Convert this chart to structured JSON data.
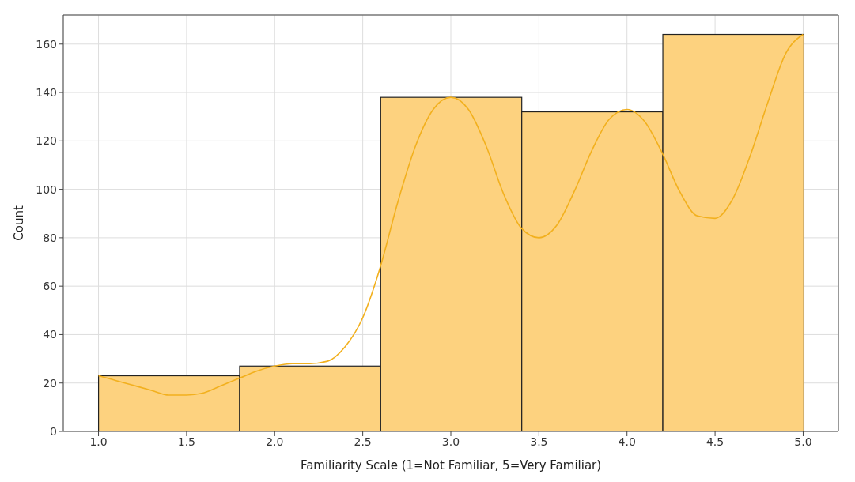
{
  "chart_data": {
    "type": "histogram",
    "xlabel": "Familiarity Scale (1=Not Familiar, 5=Very Familiar)",
    "ylabel": "Count",
    "bins": [
      1.0,
      1.8,
      2.6,
      3.4,
      4.2,
      5.0
    ],
    "values": [
      23,
      27,
      138,
      132,
      164
    ],
    "color": "#fdd27f",
    "series": [
      {
        "type": "line",
        "color": "#f2b01e",
        "x": [
          1.0,
          1.1,
          1.2,
          1.3,
          1.4,
          1.5,
          1.6,
          1.7,
          1.8,
          1.9,
          2.0,
          2.1,
          2.2,
          2.3,
          2.4,
          2.5,
          2.6,
          2.7,
          2.8,
          2.9,
          3.0,
          3.1,
          3.2,
          3.3,
          3.4,
          3.5,
          3.6,
          3.7,
          3.8,
          3.9,
          4.0,
          4.1,
          4.2,
          4.3,
          4.4,
          4.5,
          4.6,
          4.7,
          4.8,
          4.9,
          5.0
        ],
        "values": [
          23,
          21,
          19,
          17,
          15,
          15,
          16,
          19,
          22,
          25,
          27,
          28,
          28,
          29,
          35,
          47,
          68,
          95,
          118,
          133,
          138,
          133,
          118,
          98,
          84,
          80,
          85,
          99,
          116,
          129,
          133,
          128,
          115,
          99,
          89,
          88,
          96,
          114,
          136,
          156,
          164
        ]
      }
    ],
    "xlim": [
      0.8,
      5.2
    ],
    "xticks": [
      {
        "value": 1,
        "label": "1.0"
      },
      1.5,
      {
        "value": 2,
        "label": "2.0"
      },
      2.5,
      {
        "value": 3,
        "label": "3.0"
      },
      3.5,
      {
        "value": 4,
        "label": "4.0"
      },
      4.5,
      {
        "value": 5,
        "label": "5.0"
      }
    ],
    "ylim": [
      0,
      172
    ],
    "yticks": [
      0,
      20,
      40,
      60,
      80,
      100,
      120,
      140,
      160
    ],
    "grid": true,
    "marker": "none",
    "line_style": "solid"
  }
}
